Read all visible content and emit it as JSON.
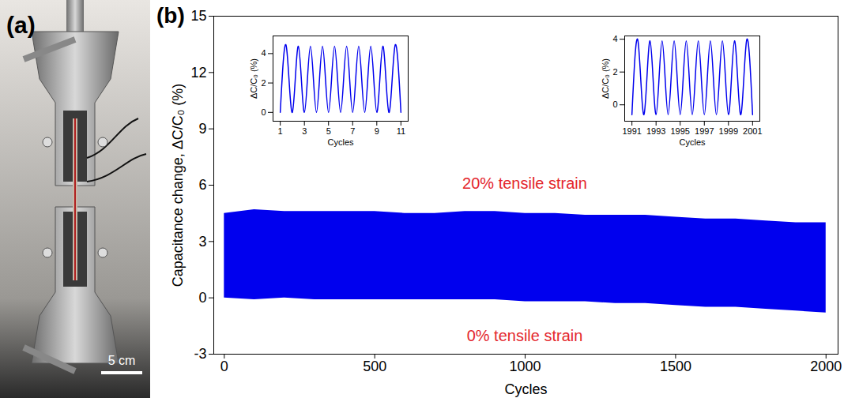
{
  "photo": {
    "label": "(a)",
    "scale_bar": "5 cm"
  },
  "chart_data": [
    {
      "type": "area",
      "label": "(b)",
      "x_label": "Cycles",
      "y_label": "Capacitance change, ΔC/C₀ (%)",
      "x": [
        0,
        100,
        200,
        300,
        400,
        500,
        600,
        700,
        800,
        900,
        1000,
        1100,
        1200,
        1300,
        1400,
        1500,
        1600,
        1700,
        1800,
        1900,
        2000
      ],
      "y_max": [
        4.5,
        4.7,
        4.6,
        4.6,
        4.6,
        4.6,
        4.5,
        4.5,
        4.6,
        4.6,
        4.5,
        4.5,
        4.4,
        4.4,
        4.4,
        4.3,
        4.2,
        4.2,
        4.1,
        4.0,
        4.0
      ],
      "y_min": [
        0,
        -0.1,
        0,
        -0.1,
        -0.1,
        -0.1,
        -0.1,
        -0.1,
        -0.1,
        -0.1,
        -0.2,
        -0.2,
        -0.2,
        -0.3,
        -0.3,
        -0.4,
        -0.5,
        -0.5,
        -0.6,
        -0.7,
        -0.8
      ],
      "color": "#0000ee",
      "xlim": [
        -35,
        2040
      ],
      "ylim": [
        -3,
        15
      ],
      "xticks": [
        0,
        500,
        1000,
        1500,
        2000
      ],
      "yticks": [
        -3,
        0,
        3,
        6,
        9,
        12,
        15
      ],
      "annotations": [
        {
          "text": "20% tensile strain",
          "color": "#e4262c"
        },
        {
          "text": "0% tensile strain",
          "color": "#e4262c"
        }
      ]
    },
    {
      "type": "line",
      "x_label": "Cycles",
      "y_label": "ΔC/C₀ (%)",
      "x": [
        1,
        1.5,
        2,
        2.5,
        3,
        3.5,
        4,
        4.5,
        5,
        5.5,
        6,
        6.5,
        7,
        7.5,
        8,
        8.5,
        9,
        9.5,
        10,
        10.5,
        11
      ],
      "values": [
        0,
        4.5,
        0,
        4.5,
        0,
        4.5,
        0,
        4.5,
        0,
        4.5,
        0,
        4.5,
        0,
        4.5,
        0,
        4.5,
        0,
        4.5,
        0,
        4.5,
        0
      ],
      "color": "#0000ee",
      "xlim": [
        0.4,
        11.6
      ],
      "ylim": [
        -0.6,
        5.2
      ],
      "xticks": [
        1,
        3,
        5,
        7,
        9,
        11
      ],
      "yticks": [
        0,
        2,
        4
      ]
    },
    {
      "type": "line",
      "x_label": "Cycles",
      "y_label": "ΔC/C₀ (%)",
      "x": [
        1991,
        1991.5,
        1992,
        1992.5,
        1993,
        1993.5,
        1994,
        1994.5,
        1995,
        1995.5,
        1996,
        1996.5,
        1997,
        1997.5,
        1998,
        1998.5,
        1999,
        1999.5,
        2000,
        2000.5,
        2001
      ],
      "values": [
        -0.6,
        3.9,
        -0.6,
        3.9,
        -0.6,
        3.9,
        -0.6,
        3.9,
        -0.6,
        3.9,
        -0.6,
        3.9,
        -0.6,
        3.9,
        -0.6,
        3.9,
        -0.6,
        3.9,
        -0.6,
        3.9,
        -0.6
      ],
      "color": "#0000ee",
      "xlim": [
        1990.4,
        2001.6
      ],
      "ylim": [
        -1,
        4.2
      ],
      "xticks": [
        1991,
        1993,
        1995,
        1997,
        1999,
        2001
      ],
      "yticks": [
        0,
        2,
        4
      ]
    }
  ]
}
